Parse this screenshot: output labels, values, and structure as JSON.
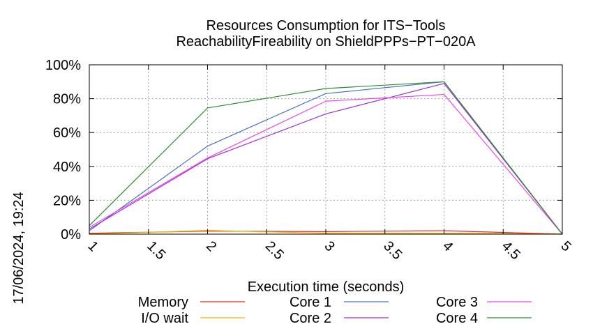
{
  "chart_data": {
    "type": "line",
    "title": "Resources Consumption for ITS−Tools",
    "subtitle": "ReachabilityFireability on ShieldPPPs−PT−020A",
    "xlabel": "Execution time (seconds)",
    "ylabel": "",
    "side_label": "17/06/2024, 19:24",
    "xlim": [
      1,
      5
    ],
    "ylim": [
      0,
      100
    ],
    "x_ticks": [
      "1",
      "1.5",
      "2",
      "2.5",
      "3",
      "3.5",
      "4",
      "4.5",
      "5"
    ],
    "y_ticks": [
      "0%",
      "20%",
      "40%",
      "60%",
      "80%",
      "100%"
    ],
    "grid": true,
    "legend_position": "bottom",
    "series": [
      {
        "name": "Memory",
        "color": "#e8281e",
        "x": [
          1,
          2,
          3,
          4,
          5
        ],
        "y": [
          0.5,
          1.8,
          1.5,
          2.0,
          0
        ]
      },
      {
        "name": "I/O wait",
        "color": "#f0b000",
        "x": [
          1,
          2,
          3,
          4,
          5
        ],
        "y": [
          0,
          2.2,
          0.5,
          0.5,
          0
        ]
      },
      {
        "name": "Core 1",
        "color": "#4a72c8",
        "x": [
          1,
          2,
          3,
          4,
          5
        ],
        "y": [
          2,
          52,
          83,
          90,
          0
        ]
      },
      {
        "name": "Core 2",
        "color": "#9b30d8",
        "x": [
          1,
          2,
          3,
          4,
          5
        ],
        "y": [
          3,
          44.5,
          71,
          89,
          0
        ]
      },
      {
        "name": "Core 3",
        "color": "#ee44ee",
        "x": [
          1,
          2,
          3,
          4,
          5
        ],
        "y": [
          4,
          45,
          78.5,
          82.5,
          0
        ]
      },
      {
        "name": "Core 4",
        "color": "#2e8b2e",
        "x": [
          1,
          2,
          3,
          4,
          5
        ],
        "y": [
          5,
          74.5,
          86,
          90,
          0
        ]
      }
    ]
  }
}
